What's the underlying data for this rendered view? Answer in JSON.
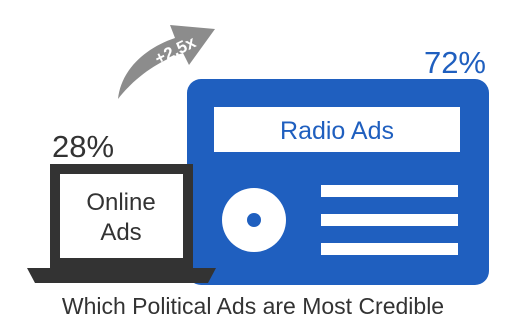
{
  "chart_data": {
    "type": "bar",
    "title": "Which Political Ads are Most Credible",
    "categories": [
      "Online Ads",
      "Radio Ads"
    ],
    "values": [
      28,
      72
    ],
    "value_labels": [
      "28%",
      "72%"
    ],
    "category_label_lines": [
      [
        "Online",
        "Ads"
      ],
      [
        "Radio Ads"
      ]
    ],
    "annotation": "+2.5x",
    "colors": {
      "online": "#333333",
      "radio": "#1f5fbf",
      "arrow": "#8c8c8c",
      "text": "#333333",
      "white": "#ffffff"
    }
  }
}
